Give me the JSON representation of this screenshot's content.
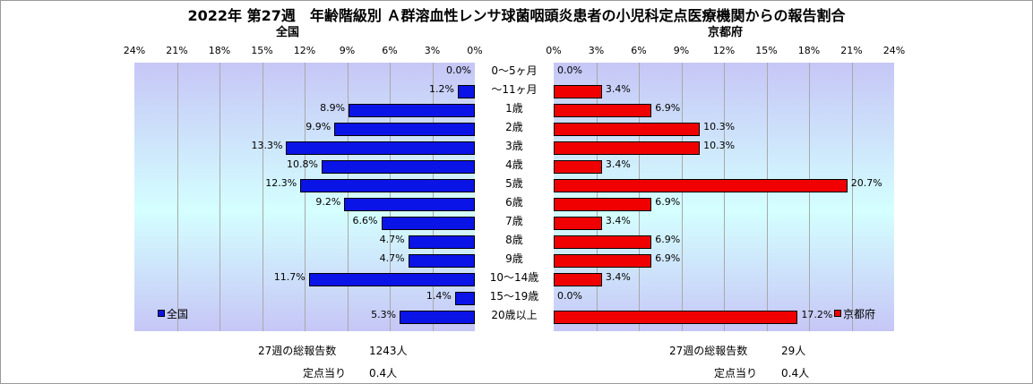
{
  "title": "2022年 第27週　年齢階級別 Ａ群溶血性レンサ球菌咽頭炎患者の小児科定点医療機関からの報告割合",
  "chart_data": {
    "type": "bar",
    "orientation": "horizontal",
    "categories": [
      "0～5ヶ月",
      "～11ヶ月",
      "1歳",
      "2歳",
      "3歳",
      "4歳",
      "5歳",
      "6歳",
      "7歳",
      "8歳",
      "9歳",
      "10～14歳",
      "15～19歳",
      "20歳以上"
    ],
    "series": [
      {
        "name": "全国",
        "color": "#0a14e6",
        "values": [
          0.0,
          1.2,
          8.9,
          9.9,
          13.3,
          10.8,
          12.3,
          9.2,
          6.6,
          4.7,
          4.7,
          11.7,
          1.4,
          5.3
        ]
      },
      {
        "name": "京都府",
        "color": "#f00000",
        "values": [
          0.0,
          3.4,
          6.9,
          10.3,
          10.3,
          3.4,
          20.7,
          6.9,
          3.4,
          6.9,
          6.9,
          3.4,
          0.0,
          17.2
        ]
      }
    ],
    "left_panel_title": "全国",
    "right_panel_title": "京都府",
    "xlim": [
      0,
      24
    ],
    "ticks": [
      0,
      3,
      6,
      9,
      12,
      15,
      18,
      21,
      24
    ],
    "tick_suffix": "%",
    "grid": true
  },
  "stats": {
    "national": {
      "total_label": "27週の総報告数",
      "total_value": "1243人",
      "per_label": "定点当り",
      "per_value": "0.4人"
    },
    "kyoto": {
      "total_label": "27週の総報告数",
      "total_value": "29人",
      "per_label": "定点当り",
      "per_value": "0.4人"
    }
  }
}
